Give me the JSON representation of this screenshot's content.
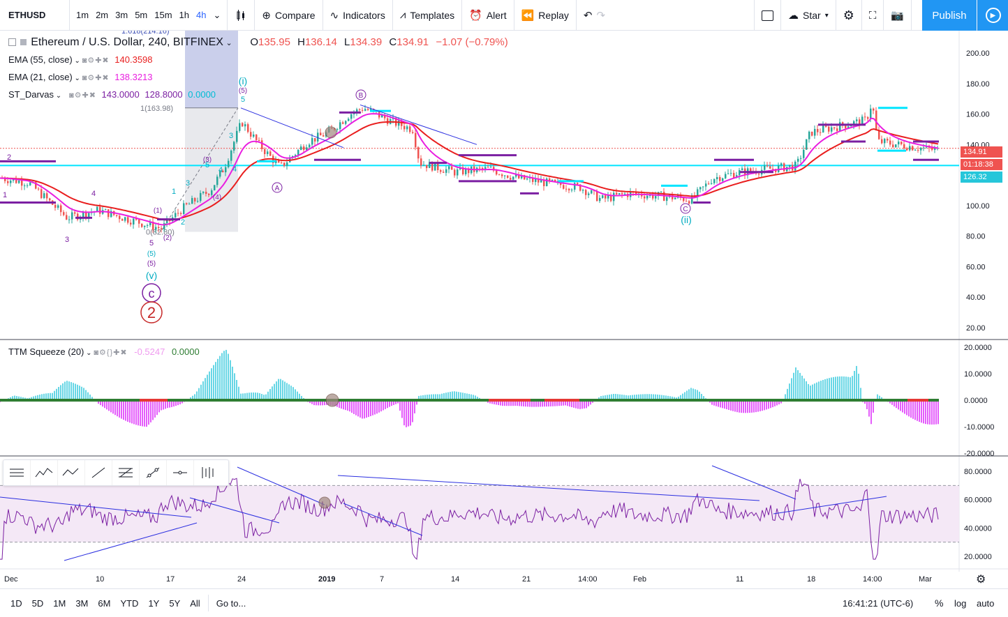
{
  "toolbar": {
    "symbol": "ETHUSD",
    "intervals": [
      "1m",
      "2m",
      "3m",
      "5m",
      "15m",
      "1h",
      "4h"
    ],
    "active_interval": "4h",
    "compare": "Compare",
    "indicators": "Indicators",
    "templates": "Templates",
    "alert": "Alert",
    "replay": "Replay",
    "star": "Star",
    "publish": "Publish"
  },
  "main": {
    "title": "Ethereum / U.S. Dollar, 240, BITFINEX",
    "ohlc": {
      "o_label": "O",
      "o": "135.95",
      "h_label": "H",
      "h": "136.14",
      "l_label": "L",
      "l": "134.39",
      "c_label": "C",
      "c": "134.91",
      "change": "−1.07 (−0.79%)"
    },
    "ema55": {
      "label": "EMA (55, close)",
      "value": "140.3598"
    },
    "ema21": {
      "label": "EMA (21, close)",
      "value": "138.3213"
    },
    "darvas": {
      "label": "ST_Darvas",
      "v1": "143.0000",
      "v2": "128.8000",
      "v3": "0.0000"
    },
    "fib_top": "1.618(214.16)",
    "fib_mid": "1(163.98)",
    "fib_bottom": "0(82.80)",
    "price_axis": [
      "200.00",
      "180.00",
      "160.00",
      "140.00",
      "120.00",
      "100.00",
      "80.00",
      "60.00",
      "40.00",
      "20.00"
    ],
    "last_price": "134.91",
    "countdown": "01:18:38",
    "hline_price": "126.32",
    "wave_labels": {
      "w2": "2",
      "w3": "3",
      "w4": "4",
      "w1": "1",
      "w5": "5",
      "iv": "(v)",
      "c": "c",
      "big2": "2",
      "i": "(i)",
      "ii": "(ii)",
      "A": "A",
      "B": "B",
      "C": "C",
      "p1": "(1)",
      "p2": "(2)",
      "p3": "(3)",
      "p4": "(4)",
      "p5": "(5)",
      "n1": "1",
      "n2": "2",
      "n3": "3",
      "n4": "4",
      "n5": "5"
    }
  },
  "ttm": {
    "label": "TTM Squeeze (20)",
    "v1": "-0.5247",
    "v2": "0.0000",
    "axis": [
      "20.0000",
      "10.0000",
      "0.0000",
      "-10.0000",
      "-20.0000"
    ]
  },
  "rsi": {
    "axis": [
      "80.0000",
      "60.0000",
      "40.0000",
      "20.0000"
    ]
  },
  "time_axis": [
    "Dec",
    "10",
    "17",
    "24",
    "2019",
    "7",
    "14",
    "21",
    "14:00",
    "Feb",
    "11",
    "18",
    "14:00",
    "Mar"
  ],
  "bottom": {
    "ranges": [
      "1D",
      "5D",
      "1M",
      "3M",
      "6M",
      "YTD",
      "1Y",
      "5Y",
      "All"
    ],
    "goto": "Go to...",
    "clock": "16:41:21 (UTC-6)",
    "pct": "%",
    "log": "log",
    "auto": "auto"
  },
  "colors": {
    "ema55": "#e91e1e",
    "ema21": "#e91ee0",
    "cyan": "#00e5ff",
    "purple": "#7b1fa2",
    "blue_line": "#2a2ee0"
  }
}
